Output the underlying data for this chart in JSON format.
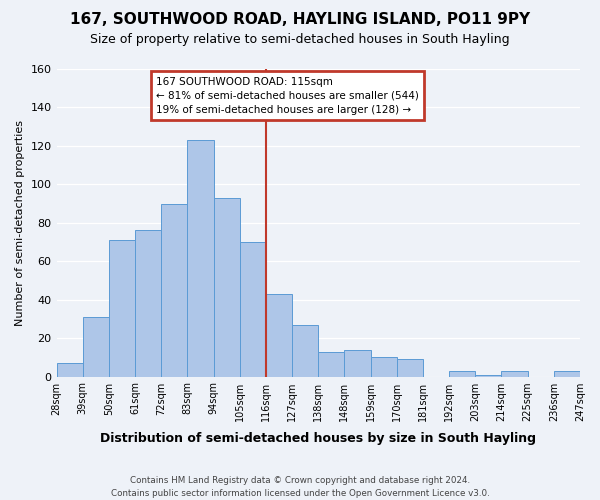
{
  "title": "167, SOUTHWOOD ROAD, HAYLING ISLAND, PO11 9PY",
  "subtitle": "Size of property relative to semi-detached houses in South Hayling",
  "xlabel": "Distribution of semi-detached houses by size in South Hayling",
  "ylabel": "Number of semi-detached properties",
  "footer_line1": "Contains HM Land Registry data © Crown copyright and database right 2024.",
  "footer_line2": "Contains public sector information licensed under the Open Government Licence v3.0.",
  "bin_labels": [
    "28sqm",
    "39sqm",
    "50sqm",
    "61sqm",
    "72sqm",
    "83sqm",
    "94sqm",
    "105sqm",
    "116sqm",
    "127sqm",
    "138sqm",
    "148sqm",
    "159sqm",
    "170sqm",
    "181sqm",
    "192sqm",
    "203sqm",
    "214sqm",
    "225sqm",
    "236sqm",
    "247sqm"
  ],
  "bar_values": [
    7,
    31,
    71,
    76,
    90,
    123,
    93,
    70,
    43,
    27,
    13,
    14,
    10,
    9,
    0,
    3,
    1,
    3,
    0,
    3
  ],
  "bar_color": "#aec6e8",
  "bar_edge_color": "#5b9bd5",
  "marker_bin_index": 8,
  "marker_line_color": "#c0392b",
  "annotation_box_color": "#c0392b",
  "annotation_title": "167 SOUTHWOOD ROAD: 115sqm",
  "annotation_line1": "← 81% of semi-detached houses are smaller (544)",
  "annotation_line2": "19% of semi-detached houses are larger (128) →",
  "ylim": [
    0,
    160
  ],
  "yticks": [
    0,
    20,
    40,
    60,
    80,
    100,
    120,
    140,
    160
  ],
  "background_color": "#eef2f8",
  "grid_color": "#ffffff"
}
